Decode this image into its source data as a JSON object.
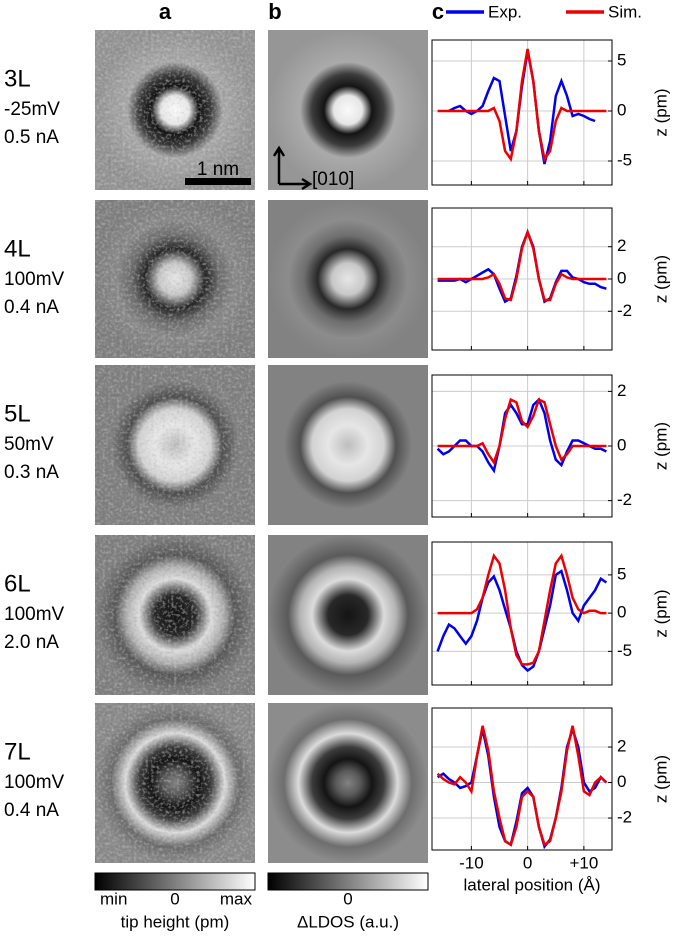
{
  "panel_labels": [
    "a",
    "b",
    "c"
  ],
  "rows": [
    {
      "layer": "3L",
      "bias": "-25mV",
      "current": "0.5 nA"
    },
    {
      "layer": "4L",
      "bias": "100mV",
      "current": "0.4 nA"
    },
    {
      "layer": "5L",
      "bias": "50mV",
      "current": "0.3 nA"
    },
    {
      "layer": "6L",
      "bias": "100mV",
      "current": "2.0 nA"
    },
    {
      "layer": "7L",
      "bias": "100mV",
      "current": "0.4 nA"
    }
  ],
  "scale_bar": "1 nm",
  "direction": "[010]",
  "colorbar_a": {
    "min": "min",
    "zero": "0",
    "max": "max",
    "label": "tip height (pm)"
  },
  "colorbar_b": {
    "zero": "0",
    "label": "ΔLDOS (a.u.)"
  },
  "chart_data": [
    {
      "type": "line",
      "ylabel": "z (pm)",
      "x": [
        -16,
        -15,
        -14,
        -13,
        -12,
        -11,
        -10,
        -9,
        -8,
        -7,
        -6,
        -5,
        -4,
        -3,
        -2,
        -1,
        0,
        1,
        2,
        3,
        4,
        5,
        6,
        7,
        8,
        9,
        10,
        11,
        12,
        13,
        14
      ],
      "xlim": [
        -17,
        15
      ],
      "xticks": [
        -10,
        0,
        10
      ],
      "ylim": [
        -7.4,
        7.1
      ],
      "yticks": [
        -5,
        0,
        5
      ],
      "grid": true,
      "series": [
        {
          "name": "Exp.",
          "color": "#0000ee",
          "values": [
            null,
            null,
            0,
            0.3,
            0.5,
            0,
            -0.3,
            0,
            0.5,
            2,
            3.3,
            3,
            -0.5,
            -4,
            -2,
            2.5,
            6,
            3,
            -2,
            -5.3,
            -3,
            1.5,
            3,
            1.5,
            -0.5,
            -0.3,
            -0.5,
            -0.8,
            -1,
            null,
            null
          ]
        },
        {
          "name": "Sim.",
          "color": "#ee0000",
          "values": [
            0,
            0,
            0,
            0,
            0,
            0,
            0,
            0,
            0,
            0,
            0.3,
            -1,
            -4,
            -4.8,
            -2,
            3,
            6.2,
            3,
            -2,
            -4.8,
            -4,
            -1,
            0.3,
            0,
            0,
            0,
            0,
            0,
            0,
            0,
            0
          ]
        }
      ]
    },
    {
      "type": "line",
      "ylabel": "z (pm)",
      "x": [
        -16,
        -15,
        -14,
        -13,
        -12,
        -11,
        -10,
        -9,
        -8,
        -7,
        -6,
        -5,
        -4,
        -3,
        -2,
        -1,
        0,
        1,
        2,
        3,
        4,
        5,
        6,
        7,
        8,
        9,
        10,
        11,
        12,
        13,
        14
      ],
      "xlim": [
        -17,
        15
      ],
      "xticks": [
        -10,
        0,
        10
      ],
      "ylim": [
        -4.4,
        4.4
      ],
      "yticks": [
        -2,
        0,
        2
      ],
      "grid": true,
      "series": [
        {
          "color": "#0000ee",
          "values": [
            -0.1,
            -0.1,
            -0.1,
            -0.1,
            0,
            -0.2,
            0,
            0.2,
            0.4,
            0.6,
            0.3,
            -0.6,
            -1.4,
            -1.2,
            0.2,
            2,
            2.9,
            2,
            0,
            -1.4,
            -1.2,
            -0.2,
            0.5,
            0.5,
            0.1,
            0,
            -0.2,
            -0.3,
            -0.3,
            -0.5,
            -0.6
          ]
        },
        {
          "color": "#ee0000",
          "values": [
            0,
            0,
            0,
            0,
            0,
            0,
            0,
            0,
            0,
            0.1,
            0.3,
            -0.3,
            -1.2,
            -1.3,
            0,
            1.9,
            2.9,
            1.9,
            0,
            -1.3,
            -1.3,
            -0.3,
            0.3,
            0.1,
            0,
            0,
            0,
            0,
            0,
            0,
            0
          ]
        }
      ]
    },
    {
      "type": "line",
      "ylabel": "z (pm)",
      "x": [
        -16,
        -15,
        -14,
        -13,
        -12,
        -11,
        -10,
        -9,
        -8,
        -7,
        -6,
        -5,
        -4,
        -3,
        -2,
        -1,
        0,
        1,
        2,
        3,
        4,
        5,
        6,
        7,
        8,
        9,
        10,
        11,
        12,
        13,
        14
      ],
      "xlim": [
        -17,
        15
      ],
      "xticks": [
        -10,
        0,
        10
      ],
      "ylim": [
        -2.6,
        2.6
      ],
      "yticks": [
        -2,
        0,
        2
      ],
      "grid": true,
      "series": [
        {
          "color": "#0000ee",
          "values": [
            -0.1,
            -0.3,
            -0.2,
            0,
            0.2,
            0.2,
            0,
            0,
            -0.2,
            -0.6,
            -0.9,
            0,
            1.2,
            1.5,
            1.2,
            0.8,
            0.8,
            1.5,
            1.7,
            1.2,
            0.2,
            -0.5,
            -0.7,
            -0.2,
            0.2,
            0.2,
            0.1,
            0,
            -0.1,
            -0.1,
            -0.2
          ]
        },
        {
          "color": "#ee0000",
          "values": [
            0,
            0,
            0,
            0,
            0,
            0,
            0,
            0,
            0.1,
            -0.3,
            -0.6,
            0,
            1,
            1.7,
            1.6,
            0.9,
            0.7,
            1.1,
            1.7,
            1.6,
            0.8,
            0,
            -0.5,
            -0.3,
            0,
            0,
            0,
            0,
            0,
            0,
            0
          ]
        }
      ]
    },
    {
      "type": "line",
      "ylabel": "z (pm)",
      "x": [
        -16,
        -15,
        -14,
        -13,
        -12,
        -11,
        -10,
        -9,
        -8,
        -7,
        -6,
        -5,
        -4,
        -3,
        -2,
        -1,
        0,
        1,
        2,
        3,
        4,
        5,
        6,
        7,
        8,
        9,
        10,
        11,
        12,
        13,
        14
      ],
      "xlim": [
        -17,
        15
      ],
      "xticks": [
        -10,
        0,
        10
      ],
      "ylim": [
        -9.4,
        9.3
      ],
      "yticks": [
        -5,
        0,
        5
      ],
      "grid": true,
      "series": [
        {
          "color": "#0000ee",
          "values": [
            -5,
            -3,
            -1.5,
            -2,
            -3,
            -4,
            -3,
            -1,
            2,
            4,
            4.8,
            3,
            0.5,
            -2,
            -5,
            -6.8,
            -7.5,
            -7,
            -5,
            -2,
            1,
            5,
            5.5,
            3,
            0,
            -1,
            1,
            2,
            3,
            4.5,
            4
          ]
        },
        {
          "color": "#ee0000",
          "values": [
            0,
            0,
            0,
            0,
            0,
            0,
            0,
            0.5,
            2,
            5,
            7.5,
            6.5,
            3,
            -2,
            -5.5,
            -6.7,
            -6.7,
            -6.5,
            -5,
            -1,
            3,
            6.5,
            7.5,
            5,
            2,
            0.5,
            0,
            0.3,
            0.3,
            0,
            0
          ]
        }
      ]
    },
    {
      "type": "line",
      "ylabel": "z (pm)",
      "xlabel": "lateral position (Å)",
      "x": [
        -16,
        -15,
        -14,
        -13,
        -12,
        -11,
        -10,
        -9,
        -8,
        -7,
        -6,
        -5,
        -4,
        -3,
        -2,
        -1,
        0,
        1,
        2,
        3,
        4,
        5,
        6,
        7,
        8,
        9,
        10,
        11,
        12,
        13,
        14
      ],
      "xlim": [
        -17,
        15
      ],
      "xticks": [
        -10,
        0,
        {
          "value": 10,
          "label": "+10"
        }
      ],
      "ylim": [
        -3.8,
        4.2
      ],
      "yticks": [
        -2,
        0,
        2
      ],
      "grid": true,
      "series": [
        {
          "color": "#0000ee",
          "values": [
            0.3,
            0.5,
            0.2,
            0,
            -0.3,
            -0.2,
            0,
            1.5,
            3,
            1.5,
            -0.8,
            -2.5,
            -3.3,
            -3.5,
            -2.2,
            -0.6,
            -0.3,
            -0.8,
            -2.5,
            -3.6,
            -3.2,
            -2,
            -0.3,
            2,
            3,
            2,
            0,
            -0.5,
            -0.3,
            0.3,
            0
          ]
        },
        {
          "color": "#ee0000",
          "values": [
            0.5,
            0.2,
            0,
            -0.1,
            0.3,
            0,
            -0.5,
            1.5,
            3.2,
            1.8,
            -0.5,
            -2,
            -3.3,
            -3.5,
            -2.5,
            -0.8,
            -0.5,
            -0.8,
            -2.5,
            -3.5,
            -3.3,
            -2,
            -0.5,
            1.8,
            3.2,
            1.5,
            -0.5,
            -0.7,
            0,
            0.3,
            0
          ]
        }
      ]
    }
  ]
}
